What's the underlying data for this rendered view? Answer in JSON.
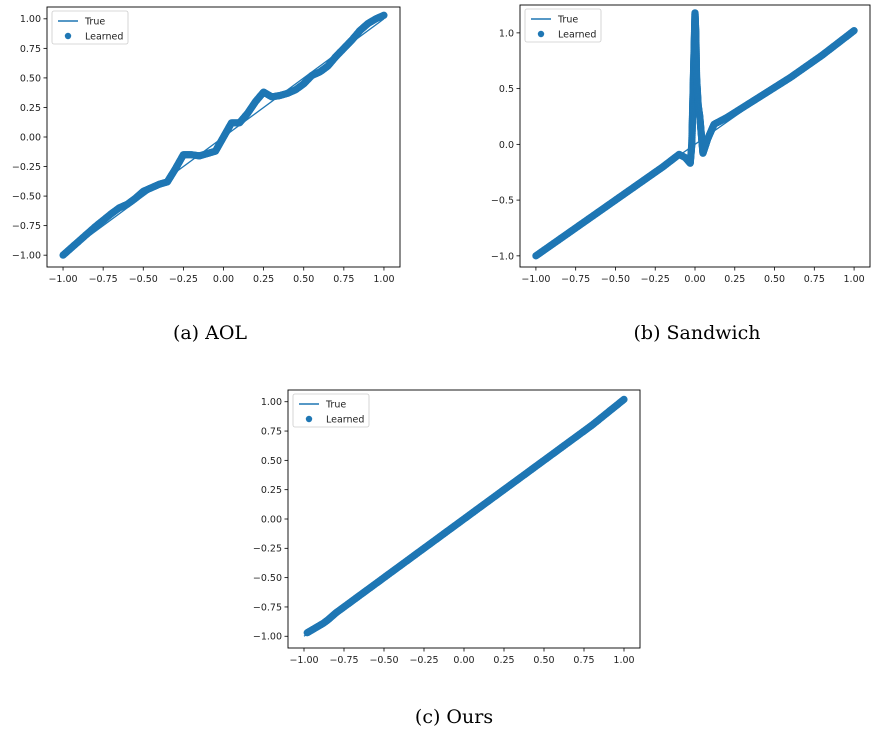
{
  "colors": {
    "series": "#1f77b4",
    "axis": "#000000",
    "legend_border": "#cccccc"
  },
  "chart_data": [
    {
      "type": "scatter",
      "caption": "(a) AOL",
      "legend": {
        "placement": "top-left",
        "entries": [
          "True",
          "Learned"
        ]
      },
      "grid": false,
      "xlim": [
        -1.1,
        1.1
      ],
      "ylim": [
        -1.1,
        1.1
      ],
      "xticks": [
        -1.0,
        -0.75,
        -0.5,
        -0.25,
        0.0,
        0.25,
        0.5,
        0.75,
        1.0
      ],
      "xtick_labels": [
        "−1.00",
        "−0.75",
        "−0.50",
        "−0.25",
        "0.00",
        "0.25",
        "0.50",
        "0.75",
        "1.00"
      ],
      "yticks": [
        -1.0,
        -0.75,
        -0.5,
        -0.25,
        0.0,
        0.25,
        0.5,
        0.75,
        1.0
      ],
      "ytick_labels": [
        "−1.00",
        "−0.75",
        "−0.50",
        "−0.25",
        "0.00",
        "0.25",
        "0.50",
        "0.75",
        "1.00"
      ],
      "series": [
        {
          "name": "True",
          "type": "line",
          "x": [
            -1.0,
            1.0
          ],
          "y": [
            -1.0,
            1.0
          ]
        },
        {
          "name": "Learned",
          "type": "scatter",
          "x": [
            -1.0,
            -0.9,
            -0.8,
            -0.7,
            -0.65,
            -0.6,
            -0.55,
            -0.5,
            -0.45,
            -0.4,
            -0.35,
            -0.3,
            -0.25,
            -0.2,
            -0.15,
            -0.1,
            -0.05,
            0.0,
            0.05,
            0.1,
            0.15,
            0.2,
            0.25,
            0.3,
            0.35,
            0.4,
            0.45,
            0.5,
            0.55,
            0.6,
            0.65,
            0.7,
            0.75,
            0.8,
            0.85,
            0.9,
            0.95,
            1.0
          ],
          "y": [
            -1.0,
            -0.88,
            -0.76,
            -0.65,
            -0.6,
            -0.57,
            -0.52,
            -0.46,
            -0.43,
            -0.4,
            -0.38,
            -0.27,
            -0.15,
            -0.15,
            -0.16,
            -0.14,
            -0.12,
            0.0,
            0.12,
            0.12,
            0.2,
            0.3,
            0.38,
            0.34,
            0.35,
            0.37,
            0.4,
            0.45,
            0.52,
            0.55,
            0.6,
            0.68,
            0.75,
            0.82,
            0.9,
            0.96,
            1.0,
            1.03
          ]
        }
      ]
    },
    {
      "type": "scatter",
      "caption": "(b) Sandwich",
      "legend": {
        "placement": "top-left",
        "entries": [
          "True",
          "Learned"
        ]
      },
      "grid": false,
      "xlim": [
        -1.1,
        1.1
      ],
      "ylim": [
        -1.1,
        1.25
      ],
      "xticks": [
        -1.0,
        -0.75,
        -0.5,
        -0.25,
        0.0,
        0.25,
        0.5,
        0.75,
        1.0
      ],
      "xtick_labels": [
        "−1.00",
        "−0.75",
        "−0.50",
        "−0.25",
        "0.00",
        "0.25",
        "0.50",
        "0.75",
        "1.00"
      ],
      "yticks": [
        -1.0,
        -0.5,
        0.0,
        0.5,
        1.0
      ],
      "ytick_labels": [
        "−1.0",
        "−0.5",
        "0.0",
        "0.5",
        "1.0"
      ],
      "series": [
        {
          "name": "True",
          "type": "line",
          "x": [
            -1.0,
            1.0
          ],
          "y": [
            -1.0,
            1.0
          ]
        },
        {
          "name": "Learned",
          "type": "scatter",
          "x": [
            -1.0,
            -0.8,
            -0.6,
            -0.4,
            -0.2,
            -0.1,
            -0.06,
            -0.03,
            -0.02,
            -0.01,
            0.0,
            0.005,
            0.01,
            0.02,
            0.03,
            0.05,
            0.08,
            0.12,
            0.2,
            0.4,
            0.6,
            0.8,
            1.0
          ],
          "y": [
            -1.0,
            -0.8,
            -0.6,
            -0.4,
            -0.2,
            -0.09,
            -0.12,
            -0.17,
            0.0,
            0.6,
            1.18,
            1.0,
            0.6,
            0.35,
            0.25,
            -0.08,
            0.05,
            0.18,
            0.24,
            0.42,
            0.6,
            0.8,
            1.02
          ]
        }
      ]
    },
    {
      "type": "scatter",
      "caption": "(c) Ours",
      "legend": {
        "placement": "top-left",
        "entries": [
          "True",
          "Learned"
        ]
      },
      "grid": false,
      "xlim": [
        -1.1,
        1.1
      ],
      "ylim": [
        -1.1,
        1.1
      ],
      "xticks": [
        -1.0,
        -0.75,
        -0.5,
        -0.25,
        0.0,
        0.25,
        0.5,
        0.75,
        1.0
      ],
      "xtick_labels": [
        "−1.00",
        "−0.75",
        "−0.50",
        "−0.25",
        "0.00",
        "0.25",
        "0.50",
        "0.75",
        "1.00"
      ],
      "yticks": [
        -1.0,
        -0.75,
        -0.5,
        -0.25,
        0.0,
        0.25,
        0.5,
        0.75,
        1.0
      ],
      "ytick_labels": [
        "−1.00",
        "−0.75",
        "−0.50",
        "−0.25",
        "0.00",
        "0.25",
        "0.50",
        "0.75",
        "1.00"
      ],
      "series": [
        {
          "name": "True",
          "type": "line",
          "x": [
            -1.0,
            1.0
          ],
          "y": [
            -1.0,
            1.0
          ]
        },
        {
          "name": "Learned",
          "type": "scatter",
          "x": [
            -0.98,
            -0.93,
            -0.88,
            -0.85,
            -0.8,
            -0.6,
            -0.4,
            -0.2,
            0.0,
            0.2,
            0.4,
            0.6,
            0.8,
            1.0
          ],
          "y": [
            -0.97,
            -0.93,
            -0.89,
            -0.86,
            -0.8,
            -0.6,
            -0.4,
            -0.2,
            0.0,
            0.2,
            0.4,
            0.6,
            0.8,
            1.02
          ]
        }
      ]
    }
  ]
}
